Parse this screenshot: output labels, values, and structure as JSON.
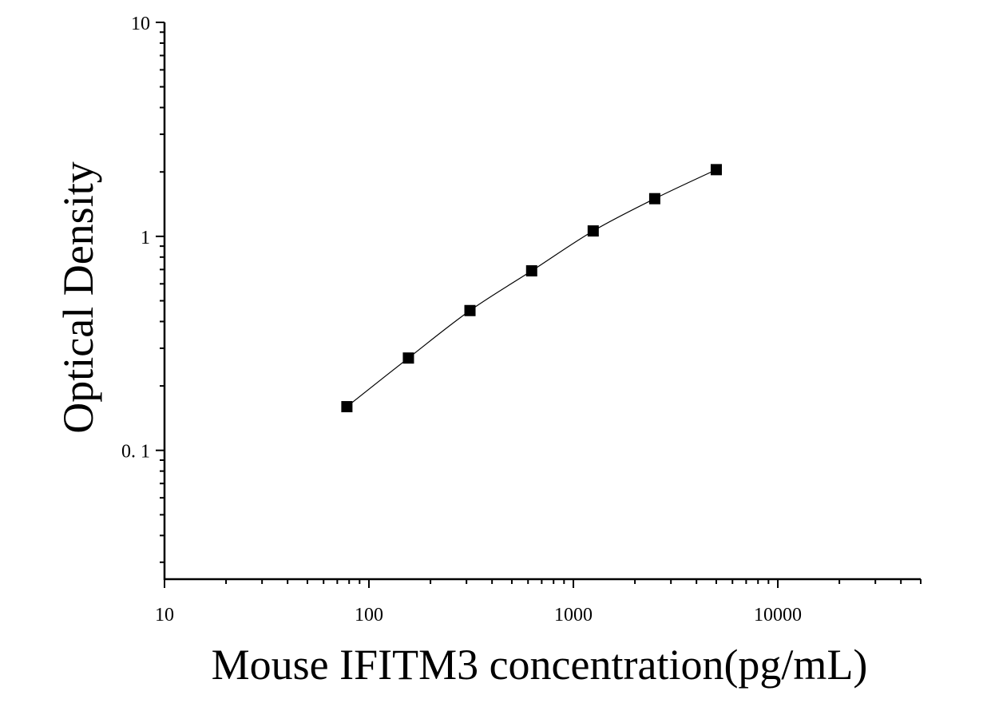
{
  "chart_data": {
    "type": "scatter",
    "title": "",
    "xlabel": "Mouse IFITM3 concentration(pg/mL)",
    "ylabel": "Optical Density",
    "x_scale": "log",
    "y_scale": "log",
    "xlim": [
      10,
      50000
    ],
    "ylim": [
      0.025,
      10
    ],
    "x_ticks": [
      {
        "value": 10,
        "label": "10"
      },
      {
        "value": 100,
        "label": "100"
      },
      {
        "value": 1000,
        "label": "1000"
      },
      {
        "value": 10000,
        "label": "10000"
      }
    ],
    "y_ticks": [
      {
        "value": 0.1,
        "label": "0. 1"
      },
      {
        "value": 1,
        "label": "1"
      },
      {
        "value": 10,
        "label": "10"
      }
    ],
    "grid": false,
    "legend": "none",
    "series": [
      {
        "marker": "square",
        "color": "#000000",
        "fit_line": true,
        "points": [
          {
            "x": 78,
            "y": 0.16
          },
          {
            "x": 156,
            "y": 0.27
          },
          {
            "x": 312,
            "y": 0.45
          },
          {
            "x": 625,
            "y": 0.69
          },
          {
            "x": 1250,
            "y": 1.06
          },
          {
            "x": 2500,
            "y": 1.5
          },
          {
            "x": 5000,
            "y": 2.05
          }
        ]
      }
    ]
  }
}
